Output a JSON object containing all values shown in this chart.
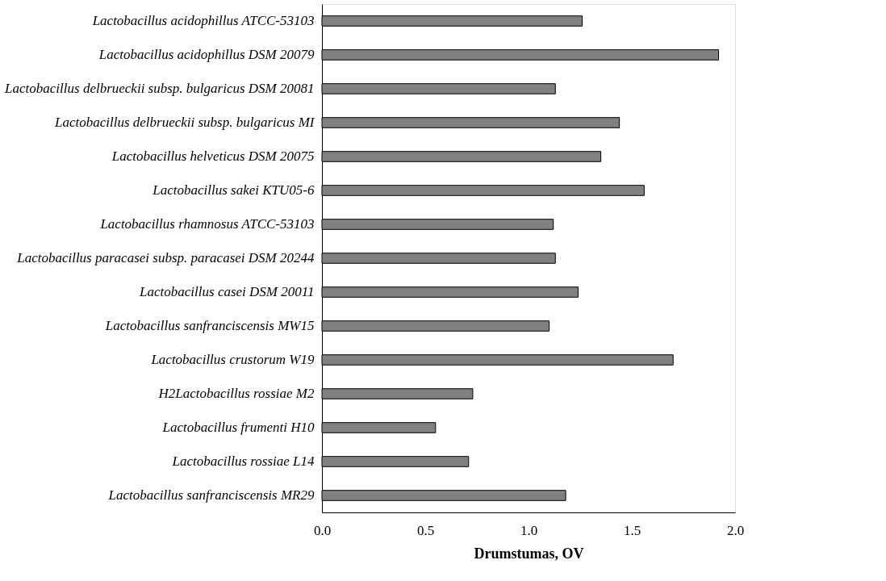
{
  "chart_data": {
    "type": "bar",
    "orientation": "horizontal",
    "xlabel": "Drumstumas, OV",
    "categories": [
      "Lactobacillus acidophillus ATCC-53103",
      "Lactobacillus acidophillus DSM 20079",
      "Lactobacillus delbrueckii subsp. bulgaricus DSM 20081",
      "Lactobacillus delbrueckii subsp. bulgaricus MI",
      "Lactobacillus helveticus DSM 20075",
      "Lactobacillus sakei KTU05-6",
      "Lactobacillus rhamnosus ATCC-53103",
      "Lactobacillus paracasei subsp. paracasei DSM 20244",
      "Lactobacillus casei DSM 20011",
      "Lactobacillus sanfranciscensis MW15",
      "Lactobacillus crustorum W19",
      "H2Lactobacillus rossiae M2",
      "Lactobacillus frumenti H10",
      "Lactobacillus rossiae L14",
      "Lactobacillus sanfranciscensis MR29"
    ],
    "values": [
      1.26,
      1.92,
      1.13,
      1.44,
      1.35,
      1.56,
      1.12,
      1.13,
      1.24,
      1.1,
      1.7,
      0.73,
      0.55,
      0.71,
      1.18
    ],
    "color": "#808080",
    "xlim": [
      0,
      2
    ],
    "xticks": [
      {
        "value": 0,
        "label": "0.0"
      },
      {
        "value": 0.5,
        "label": "0.5"
      },
      {
        "value": 1,
        "label": "1.0"
      },
      {
        "value": 1.5,
        "label": "1.5"
      },
      {
        "value": 2,
        "label": "2.0"
      }
    ],
    "grid": false
  }
}
